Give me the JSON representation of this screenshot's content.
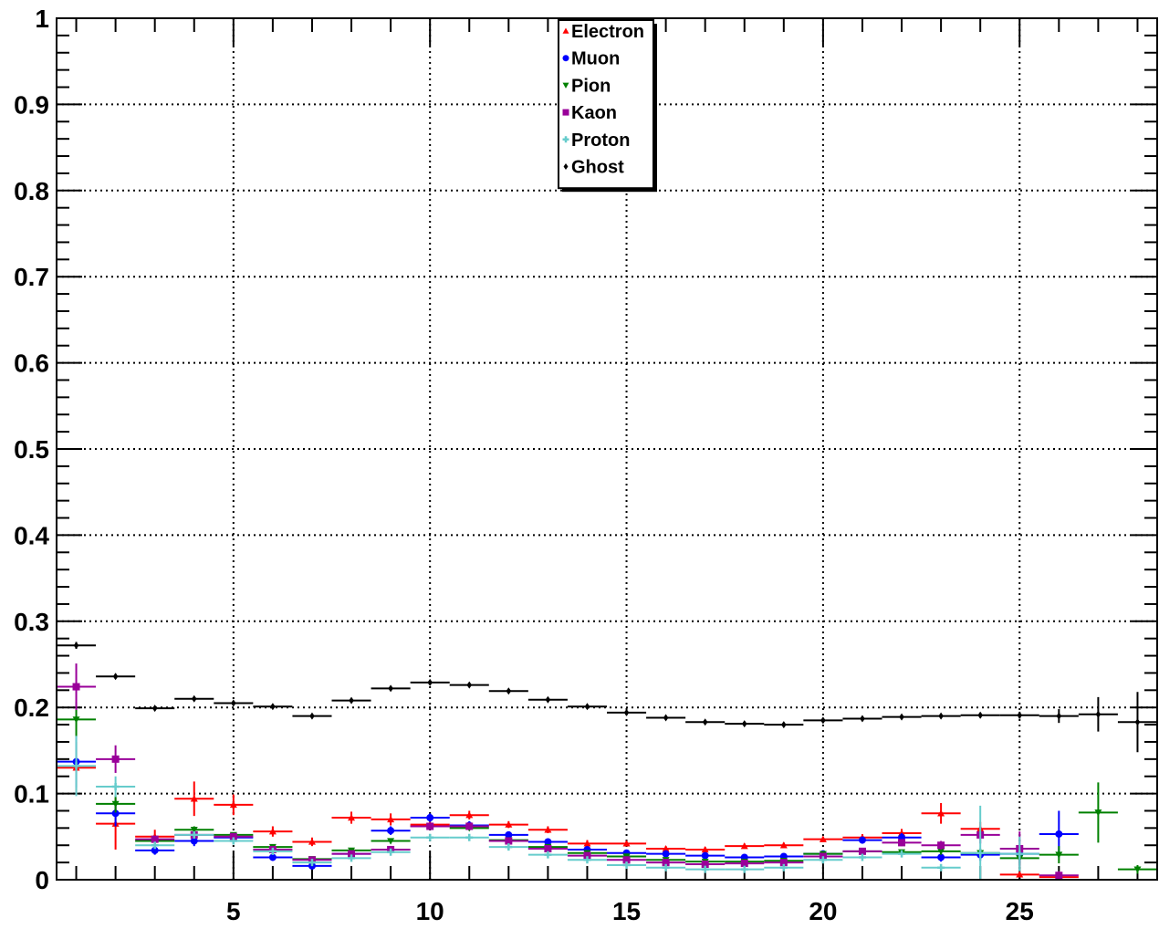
{
  "chart_data": {
    "type": "scatter",
    "title": "",
    "xlabel": "",
    "ylabel": "",
    "xlim": [
      0.5,
      28.5
    ],
    "ylim": [
      0,
      1
    ],
    "x_ticks": [
      5,
      10,
      15,
      20,
      25
    ],
    "x_tick_labels": [
      "5",
      "10",
      "15",
      "20",
      "25"
    ],
    "y_ticks": [
      0,
      0.1,
      0.2,
      0.3,
      0.4,
      0.5,
      0.6,
      0.7,
      0.8,
      0.9,
      1
    ],
    "y_tick_labels": [
      "0",
      "0.1",
      "0.2",
      "0.3",
      "0.4",
      "0.5",
      "0.6",
      "0.7",
      "0.8",
      "0.9",
      "1"
    ],
    "grid": true,
    "legend_position": "top-center",
    "x": [
      1,
      2,
      3,
      4,
      5,
      6,
      7,
      8,
      9,
      10,
      11,
      12,
      13,
      14,
      15,
      16,
      17,
      18,
      19,
      20,
      21,
      22,
      23,
      24,
      25,
      26,
      27,
      28
    ],
    "series": [
      {
        "name": "Electron",
        "color": "#ff0000",
        "marker": "triangle-up",
        "values": [
          0.13,
          0.065,
          0.05,
          0.094,
          0.087,
          0.056,
          0.044,
          0.072,
          0.07,
          0.064,
          0.075,
          0.064,
          0.058,
          0.042,
          0.042,
          0.036,
          0.035,
          0.039,
          0.04,
          0.047,
          0.049,
          0.054,
          0.077,
          0.059,
          0.006,
          0.003,
          null,
          null
        ],
        "errors": [
          0.03,
          0.03,
          0.008,
          0.02,
          0.012,
          0.006,
          0.005,
          0.007,
          0.007,
          0.005,
          0.005,
          0.004,
          0.004,
          0.004,
          0.003,
          0.003,
          0.003,
          0.003,
          0.003,
          0.003,
          0.004,
          0.005,
          0.012,
          0.008,
          0.003,
          0.003,
          null,
          null
        ]
      },
      {
        "name": "Muon",
        "color": "#0000ff",
        "marker": "circle",
        "values": [
          0.137,
          0.077,
          0.034,
          0.045,
          0.049,
          0.026,
          0.016,
          0.03,
          0.057,
          0.072,
          0.063,
          0.052,
          0.044,
          0.035,
          0.031,
          0.03,
          0.028,
          0.026,
          0.027,
          0.03,
          0.046,
          0.049,
          0.026,
          0.029,
          0.03,
          0.053,
          null,
          null
        ],
        "errors": [
          0.03,
          0.015,
          0.005,
          0.006,
          0.006,
          0.004,
          0.004,
          0.004,
          0.005,
          0.005,
          0.005,
          0.004,
          0.004,
          0.003,
          0.003,
          0.003,
          0.003,
          0.003,
          0.003,
          0.003,
          0.004,
          0.005,
          0.005,
          0.007,
          0.01,
          0.027,
          null,
          null
        ]
      },
      {
        "name": "Pion",
        "color": "#008000",
        "marker": "triangle-down",
        "values": [
          0.186,
          0.088,
          0.045,
          0.058,
          0.052,
          0.038,
          0.024,
          0.034,
          0.045,
          0.062,
          0.06,
          0.046,
          0.038,
          0.031,
          0.027,
          0.023,
          0.021,
          0.021,
          0.022,
          0.03,
          0.033,
          0.032,
          0.033,
          0.031,
          0.025,
          0.029,
          0.078,
          0.012
        ],
        "errors": [
          0.02,
          0.01,
          0.004,
          0.004,
          0.003,
          0.003,
          0.003,
          0.003,
          0.003,
          0.003,
          0.003,
          0.002,
          0.002,
          0.002,
          0.002,
          0.002,
          0.002,
          0.002,
          0.002,
          0.002,
          0.003,
          0.003,
          0.004,
          0.005,
          0.008,
          0.01,
          0.035,
          0.005
        ]
      },
      {
        "name": "Kaon",
        "color": "#990099",
        "marker": "square",
        "values": [
          0.224,
          0.14,
          0.047,
          0.052,
          0.05,
          0.035,
          0.023,
          0.03,
          0.035,
          0.062,
          0.062,
          0.045,
          0.036,
          0.028,
          0.023,
          0.02,
          0.018,
          0.019,
          0.02,
          0.027,
          0.033,
          0.043,
          0.04,
          0.052,
          0.036,
          0.005,
          null,
          null
        ],
        "errors": [
          0.027,
          0.016,
          0.004,
          0.004,
          0.004,
          0.003,
          0.003,
          0.003,
          0.003,
          0.003,
          0.003,
          0.003,
          0.003,
          0.003,
          0.002,
          0.002,
          0.002,
          0.002,
          0.002,
          0.003,
          0.003,
          0.004,
          0.005,
          0.01,
          0.02,
          0.005,
          null,
          null
        ]
      },
      {
        "name": "Proton",
        "color": "#66cccc",
        "marker": "cross",
        "values": [
          0.132,
          0.108,
          0.04,
          0.052,
          0.045,
          0.033,
          0.02,
          0.025,
          0.032,
          0.049,
          0.049,
          0.038,
          0.029,
          0.023,
          0.017,
          0.014,
          0.012,
          0.012,
          0.014,
          0.023,
          0.026,
          0.03,
          0.014,
          0.031,
          0.03,
          null,
          null,
          null
        ],
        "errors": [
          0.035,
          0.012,
          0.004,
          0.004,
          0.004,
          0.003,
          0.003,
          0.003,
          0.003,
          0.003,
          0.003,
          0.003,
          0.002,
          0.002,
          0.002,
          0.002,
          0.002,
          0.002,
          0.002,
          0.002,
          0.003,
          0.003,
          0.004,
          0.055,
          0.02,
          null,
          null,
          null
        ]
      },
      {
        "name": "Ghost",
        "color": "#000000",
        "marker": "diamond",
        "values": [
          0.272,
          0.236,
          0.199,
          0.21,
          0.205,
          0.201,
          0.19,
          0.208,
          0.222,
          0.229,
          0.226,
          0.219,
          0.209,
          0.201,
          0.194,
          0.188,
          0.183,
          0.181,
          0.18,
          0.185,
          0.187,
          0.189,
          0.19,
          0.191,
          0.191,
          0.19,
          0.192,
          0.183
        ],
        "errors": [
          0.004,
          0.003,
          0.002,
          0.002,
          0.002,
          0.002,
          0.002,
          0.002,
          0.002,
          0.002,
          0.002,
          0.002,
          0.002,
          0.002,
          0.002,
          0.002,
          0.002,
          0.002,
          0.002,
          0.002,
          0.002,
          0.002,
          0.002,
          0.003,
          0.004,
          0.008,
          0.02,
          0.035
        ]
      }
    ]
  }
}
